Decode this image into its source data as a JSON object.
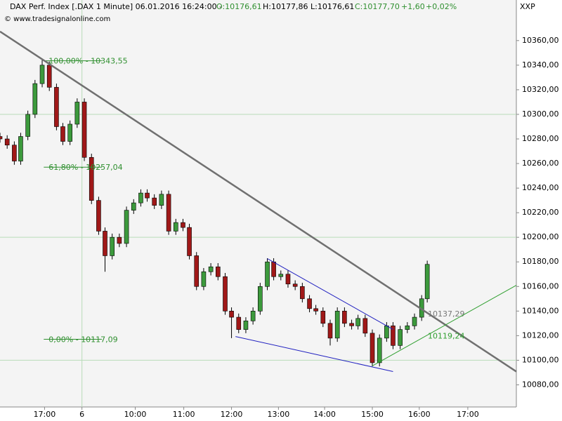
{
  "chart_data": {
    "type": "candlestick",
    "header": {
      "symbol": "DAX Perf. Index [.DAX  1 Minute] 06.01.2016 16:24:00 -",
      "open": "O:10176,61",
      "high": "H:10177,86",
      "low": "L:10176,61",
      "close": "C:10177,70",
      "change": "+1,60",
      "change_pct": "+0,02%",
      "source": "© www.tradesignalonline.com",
      "axis_name": "XXP"
    },
    "x": [
      0,
      9,
      18,
      26,
      35,
      44,
      53,
      62,
      71,
      79,
      88,
      97,
      106,
      115,
      124,
      132,
      141,
      150,
      159,
      168,
      177,
      185,
      194,
      203,
      212,
      221,
      230,
      238,
      247,
      256,
      265,
      274,
      283,
      291,
      300,
      309,
      318,
      327,
      336,
      344,
      353,
      362,
      371,
      380,
      389,
      397,
      406,
      415,
      424,
      433,
      442,
      450,
      459,
      468,
      477,
      486,
      494,
      503,
      512,
      521,
      530,
      537
    ],
    "open": [
      10282,
      10280,
      10275,
      10262,
      10282,
      10300,
      10325,
      10340,
      10322,
      10290,
      10278,
      10292,
      10310,
      10265,
      10230,
      10205,
      10185,
      10200,
      10195,
      10222,
      10228,
      10236,
      10232,
      10226,
      10235,
      10205,
      10212,
      10208,
      10185,
      10160,
      10172,
      10176,
      10168,
      10140,
      10135,
      10125,
      10132,
      10140,
      10160,
      10180,
      10168,
      10170,
      10162,
      10160,
      10150,
      10142,
      10140,
      10130,
      10118,
      10140,
      10130,
      10128,
      10134,
      10122,
      10098,
      10118,
      10128,
      10112,
      10125,
      10128,
      10135,
      10150
    ],
    "high": [
      10285,
      10283,
      10278,
      10285,
      10303,
      10328,
      10344,
      10343,
      10325,
      10293,
      10295,
      10313,
      10313,
      10268,
      10233,
      10208,
      10203,
      10203,
      10225,
      10231,
      10239,
      10239,
      10235,
      10238,
      10238,
      10215,
      10215,
      10211,
      10188,
      10175,
      10179,
      10179,
      10171,
      10143,
      10138,
      10135,
      10143,
      10163,
      10183,
      10183,
      10173,
      10173,
      10165,
      10163,
      10153,
      10145,
      10143,
      10133,
      10143,
      10143,
      10133,
      10137,
      10137,
      10125,
      10121,
      10131,
      10131,
      10128,
      10131,
      10138,
      10153,
      10181
    ],
    "low": [
      10277,
      10272,
      10259,
      10259,
      10279,
      10297,
      10322,
      10319,
      10287,
      10275,
      10275,
      10289,
      10262,
      10227,
      10202,
      10172,
      10182,
      10192,
      10192,
      10219,
      10225,
      10229,
      10223,
      10223,
      10202,
      10202,
      10205,
      10182,
      10157,
      10157,
      10169,
      10165,
      10137,
      10118,
      10122,
      10122,
      10129,
      10137,
      10157,
      10165,
      10165,
      10159,
      10157,
      10147,
      10139,
      10137,
      10127,
      10112,
      10115,
      10127,
      10125,
      10125,
      10119,
      10095,
      10095,
      10115,
      10109,
      10109,
      10122,
      10125,
      10132,
      10147
    ],
    "close": [
      10280,
      10275,
      10262,
      10282,
      10300,
      10325,
      10340,
      10322,
      10290,
      10278,
      10292,
      10310,
      10265,
      10230,
      10205,
      10185,
      10200,
      10195,
      10222,
      10228,
      10236,
      10232,
      10226,
      10235,
      10205,
      10212,
      10208,
      10185,
      10160,
      10172,
      10176,
      10168,
      10140,
      10135,
      10125,
      10132,
      10140,
      10160,
      10180,
      10168,
      10170,
      10162,
      10160,
      10150,
      10142,
      10140,
      10130,
      10118,
      10140,
      10130,
      10128,
      10134,
      10122,
      10098,
      10118,
      10128,
      10112,
      10125,
      10128,
      10135,
      10150,
      10178
    ],
    "up_color": "#3c9a3c",
    "down_color": "#a01818",
    "xlim": [
      0,
      649
    ],
    "ylim": [
      10062,
      10393
    ],
    "xticks": [
      {
        "value": 56,
        "label": "17:00"
      },
      {
        "value": 103,
        "label": "6"
      },
      {
        "value": 170,
        "label": "10:00"
      },
      {
        "value": 231,
        "label": "11:00"
      },
      {
        "value": 291,
        "label": "12:00"
      },
      {
        "value": 350,
        "label": "13:00"
      },
      {
        "value": 408,
        "label": "14:00"
      },
      {
        "value": 468,
        "label": "15:00"
      },
      {
        "value": 527,
        "label": "16:00"
      },
      {
        "value": 588,
        "label": "17:00"
      }
    ],
    "yticks": [
      {
        "value": 10080,
        "label": "10080,00"
      },
      {
        "value": 10100,
        "label": "10100,00"
      },
      {
        "value": 10120,
        "label": "10120,00"
      },
      {
        "value": 10140,
        "label": "10140,00"
      },
      {
        "value": 10160,
        "label": "10160,00"
      },
      {
        "value": 10180,
        "label": "10180,00"
      },
      {
        "value": 10200,
        "label": "10200,00"
      },
      {
        "value": 10220,
        "label": "10220,00"
      },
      {
        "value": 10240,
        "label": "10240,00"
      },
      {
        "value": 10260,
        "label": "10260,00"
      },
      {
        "value": 10280,
        "label": "10280,00"
      },
      {
        "value": 10300,
        "label": "10300,00"
      },
      {
        "value": 10320,
        "label": "10320,00"
      },
      {
        "value": 10340,
        "label": "10340,00"
      },
      {
        "value": 10360,
        "label": "10360,00"
      }
    ],
    "grid_y": [
      10100,
      10200,
      10300
    ],
    "grid_x": [
      103
    ],
    "grid_color": "#b8dcb8",
    "fibonacci": {
      "color": "#2f8f2f",
      "x": [
        55,
        128
      ],
      "levels": [
        {
          "value": 10343.55,
          "label": "100,00% - 10343,55"
        },
        {
          "value": 10257.04,
          "label": "61,80% - 10257,04"
        },
        {
          "value": 10117.09,
          "label": "0,00% - 10117,09"
        }
      ]
    },
    "trendlines": [
      {
        "color": "#707070",
        "x": [
          0,
          649
        ],
        "y": [
          10367.4,
          10090.8
        ],
        "label": {
          "value": 10137.29,
          "label": "10137,29"
        }
      },
      {
        "color": "#2020c0",
        "x": [
          336,
          494
        ],
        "y": [
          10182.7,
          10125.1
        ]
      },
      {
        "color": "#2020c0",
        "x": [
          296,
          494
        ],
        "y": [
          10119.3,
          10090.8
        ]
      },
      {
        "color": "#2f9f2f",
        "x": [
          468,
          649
        ],
        "y": [
          10095.4,
          10161.0
        ],
        "label": {
          "value": 10119.24,
          "label": "10119,24"
        }
      }
    ]
  }
}
